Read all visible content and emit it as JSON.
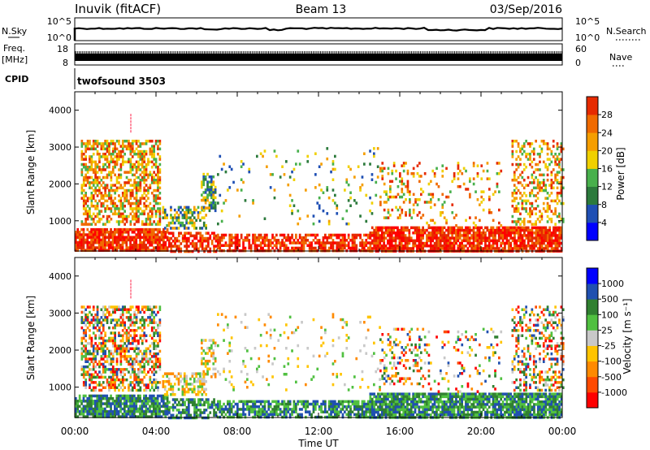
{
  "header": {
    "station": "Inuvik (fitACF)",
    "beam": "Beam 13",
    "date": "03/Sep/2016"
  },
  "strips": {
    "nsky_label": "N.Sky",
    "nsky_ticks": [
      "10^5",
      "10^0"
    ],
    "nsearch_label": "N.Search",
    "freq_label_1": "Freq.",
    "freq_label_2": "[MHz]",
    "freq_ticks": [
      "18",
      "8"
    ],
    "nave_label": "Nave",
    "nave_ticks": [
      "60",
      "0"
    ],
    "cpid_label": "CPID",
    "cpid_value": "twofsound 3503"
  },
  "colors": {
    "power_scale": [
      "#0000ff",
      "#1f4fb4",
      "#2c7a3c",
      "#48b04c",
      "#f0d000",
      "#f59e00",
      "#f06a00",
      "#e62a00",
      "#ff0000"
    ],
    "velocity_scale": [
      "#ff0000",
      "#ff4a00",
      "#ff8a00",
      "#ffc400",
      "#c8c8c8",
      "#50c040",
      "#308030",
      "#2050b0",
      "#0000ff"
    ]
  },
  "chart_data": [
    {
      "type": "heatmap",
      "name_on_chart": "",
      "ylabel": "Slant Range [km]",
      "xlabel": "",
      "x_ticks": [
        "00:00",
        "04:00",
        "08:00",
        "12:00",
        "16:00",
        "20:00",
        "00:00"
      ],
      "y_ticks": [
        1000,
        2000,
        3000,
        4000
      ],
      "xlim_hours": [
        0,
        24
      ],
      "ylim_km": [
        180,
        4500
      ],
      "colorbar_label": "Power [dB]",
      "colorbar_ticks": [
        "28",
        "24",
        "20",
        "16",
        "12",
        "8",
        "4"
      ],
      "colorbar_range": [
        0,
        32
      ]
    },
    {
      "type": "heatmap",
      "ylabel": "Slant Range [km]",
      "xlabel": "Time UT",
      "x_ticks": [
        "00:00",
        "04:00",
        "08:00",
        "12:00",
        "16:00",
        "20:00",
        "00:00"
      ],
      "y_ticks": [
        1000,
        2000,
        3000,
        4000
      ],
      "xlim_hours": [
        0,
        24
      ],
      "ylim_km": [
        180,
        4500
      ],
      "colorbar_label": "Velocity [m s⁻¹]",
      "colorbar_ticks": [
        "1000",
        "500",
        "100",
        "25",
        "-25",
        "-100",
        "-500",
        "-1000"
      ]
    }
  ]
}
